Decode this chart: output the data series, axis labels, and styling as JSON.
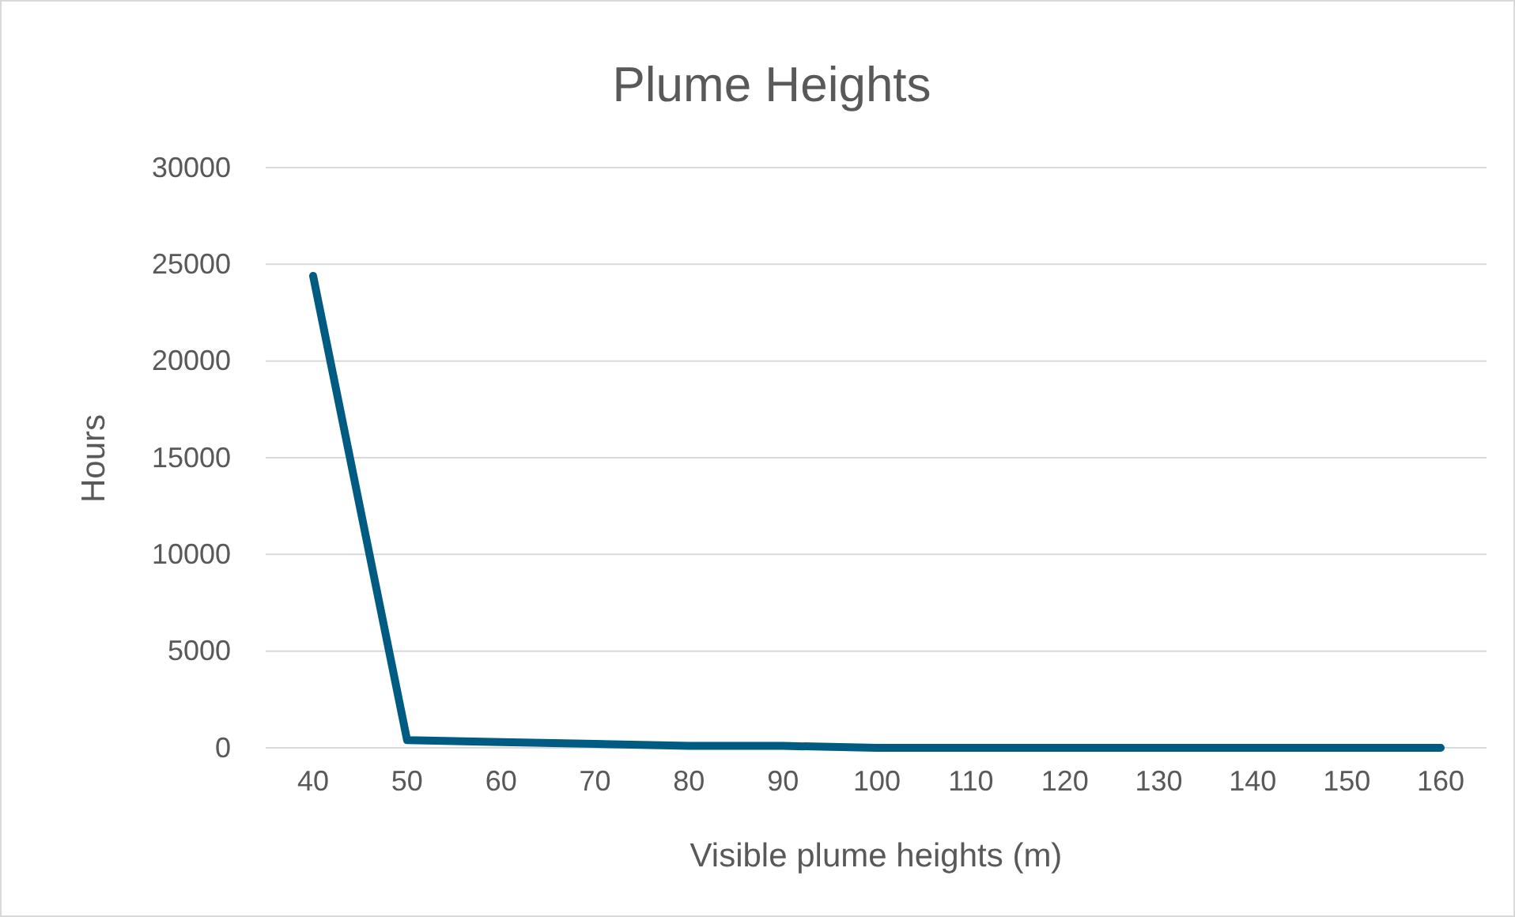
{
  "chart_data": {
    "type": "line",
    "title": "Plume Heights",
    "xlabel": "Visible plume heights (m)",
    "ylabel": "Hours",
    "categories": [
      "40",
      "50",
      "60",
      "70",
      "80",
      "90",
      "100",
      "110",
      "120",
      "130",
      "140",
      "150",
      "160"
    ],
    "series": [
      {
        "color": "#005b82",
        "values": [
          24400,
          400,
          300,
          200,
          100,
          100,
          0,
          0,
          0,
          0,
          0,
          0,
          0
        ]
      }
    ],
    "ylim": [
      0,
      30000
    ],
    "yticks": [
      0,
      5000,
      10000,
      15000,
      20000,
      25000,
      30000
    ],
    "grid": "y",
    "marker": "none",
    "line_style": "solid"
  }
}
